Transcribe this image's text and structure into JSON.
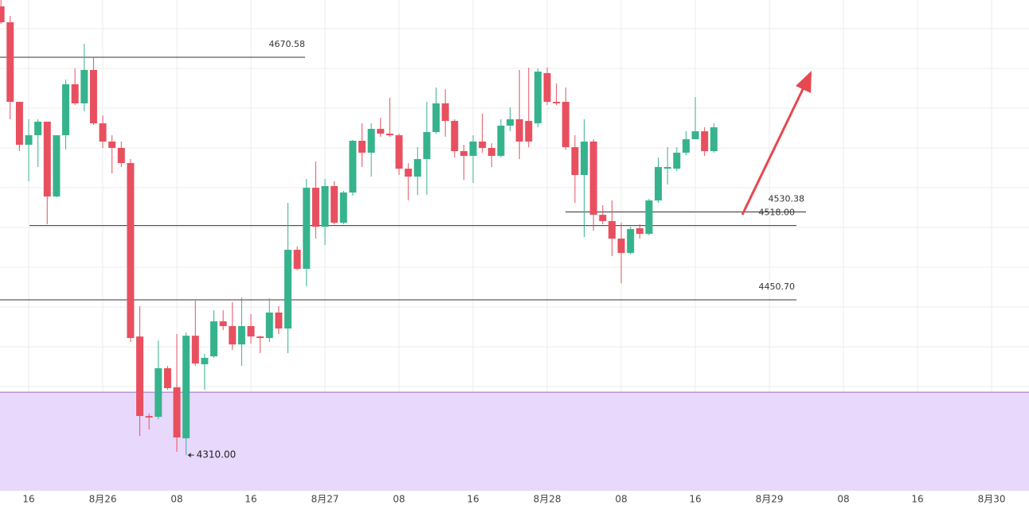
{
  "chart_data": {
    "type": "candlestick",
    "up_color": "#36b38d",
    "down_color": "#e8505f",
    "xlim": [
      -3.1,
      108.04
    ],
    "ylim": [
      4277.7,
      4722.5
    ],
    "xticks": [
      {
        "value": 0,
        "label": "16"
      },
      {
        "value": 8,
        "label": "8月26"
      },
      {
        "value": 16,
        "label": "08"
      },
      {
        "value": 24,
        "label": "16"
      },
      {
        "value": 32,
        "label": "8月27"
      },
      {
        "value": 40,
        "label": "08"
      },
      {
        "value": 48,
        "label": "16"
      },
      {
        "value": 56,
        "label": "8月28"
      },
      {
        "value": 64,
        "label": "08"
      },
      {
        "value": 72,
        "label": "16"
      },
      {
        "value": 80,
        "label": "8月29"
      },
      {
        "value": 88,
        "label": "08"
      },
      {
        "value": 96,
        "label": "16"
      },
      {
        "value": 104,
        "label": "8月30"
      }
    ],
    "x": [
      -3,
      -2,
      -1,
      0,
      1,
      2,
      3,
      4,
      5,
      6,
      7,
      8,
      9,
      10,
      11,
      12,
      13,
      14,
      15,
      16,
      17,
      18,
      19,
      20,
      21,
      22,
      23,
      24,
      25,
      26,
      27,
      28,
      29,
      30,
      31,
      32,
      33,
      34,
      35,
      36,
      37,
      38,
      39,
      40,
      41,
      42,
      43,
      44,
      45,
      46,
      47,
      48,
      49,
      50,
      51,
      52,
      53,
      54,
      55,
      56,
      57,
      58,
      59,
      60,
      61,
      62,
      63,
      64,
      65,
      66,
      67,
      68,
      69,
      70,
      71,
      72,
      73,
      74
    ],
    "open": [
      4716.7,
      4702.3,
      4630.2,
      4591.3,
      4599.9,
      4612.2,
      4544.4,
      4599.9,
      4646.1,
      4628.8,
      4659.1,
      4610.7,
      4594.2,
      4588.4,
      4574.7,
      4417.5,
      4345.4,
      4344.7,
      4388.7,
      4371.4,
      4325.2,
      4418.2,
      4392.3,
      4399.5,
      4431.2,
      4426.9,
      4410.3,
      4426.9,
      4417.5,
      4416.1,
      4439.2,
      4424.7,
      4496.1,
      4478.8,
      4552.3,
      4517.0,
      4553.8,
      4520.6,
      4548.0,
      4594.9,
      4584.1,
      4605.7,
      4601.4,
      4599.9,
      4569.6,
      4562.4,
      4578.3,
      4602.8,
      4628.8,
      4612.9,
      4585.5,
      4581.2,
      4594.2,
      4588.4,
      4581.2,
      4608.6,
      4614.4,
      4612.9,
      4610.7,
      4656.2,
      4630.2,
      4630.2,
      4589.1,
      4563.9,
      4594.2,
      4527.8,
      4522.1,
      4506.2,
      4493.2,
      4515.6,
      4510.5,
      4540.8,
      4569.6,
      4569.6,
      4584.1,
      4596.3,
      4603.5,
      4585.5
    ],
    "high": [
      4722.5,
      4708.1,
      4630.2,
      4614.4,
      4614.4,
      4612.2,
      4599.9,
      4650.4,
      4660.5,
      4682.8,
      4670.6,
      4618.0,
      4599.9,
      4594.2,
      4578.3,
      4444.9,
      4347.6,
      4413.9,
      4390.8,
      4419.7,
      4421.1,
      4450.0,
      4401.7,
      4441.3,
      4441.3,
      4448.5,
      4452.8,
      4437.7,
      4418.2,
      4452.1,
      4444.9,
      4538.6,
      4499.0,
      4560.3,
      4576.1,
      4560.3,
      4558.1,
      4549.5,
      4595.6,
      4610.7,
      4610.7,
      4615.8,
      4633.8,
      4601.4,
      4574.7,
      4589.1,
      4630.2,
      4643.2,
      4641.7,
      4614.4,
      4591.3,
      4599.9,
      4619.4,
      4592.7,
      4614.4,
      4625.2,
      4659.1,
      4661.2,
      4660.5,
      4661.2,
      4646.8,
      4643.2,
      4599.9,
      4614.4,
      4596.3,
      4536.5,
      4540.8,
      4520.6,
      4517.0,
      4519.2,
      4542.3,
      4579.7,
      4589.1,
      4589.1,
      4603.5,
      4634.5,
      4607.1,
      4610.7
    ],
    "low": [
      4700.9,
      4614.4,
      4585.5,
      4558.1,
      4571.1,
      4519.2,
      4543.7,
      4587.0,
      4627.3,
      4621.6,
      4609.3,
      4588.4,
      4565.3,
      4571.1,
      4412.5,
      4327.4,
      4333.2,
      4342.5,
      4369.2,
      4313.0,
      4310.0,
      4390.8,
      4369.2,
      4398.1,
      4423.3,
      4405.3,
      4390.8,
      4411.0,
      4402.4,
      4412.5,
      4419.7,
      4402.4,
      4477.4,
      4462.9,
      4506.2,
      4500.4,
      4519.2,
      4519.2,
      4545.1,
      4571.1,
      4562.4,
      4598.5,
      4598.5,
      4563.9,
      4540.8,
      4545.9,
      4545.9,
      4601.4,
      4598.5,
      4579.7,
      4559.5,
      4556.7,
      4584.1,
      4571.1,
      4579.7,
      4603.5,
      4578.3,
      4589.1,
      4607.1,
      4627.3,
      4627.3,
      4587.0,
      4538.6,
      4507.6,
      4513.4,
      4519.2,
      4490.3,
      4465.8,
      4491.8,
      4506.2,
      4509.1,
      4538.6,
      4555.2,
      4567.5,
      4581.9,
      4596.3,
      4581.2,
      4584.1
    ],
    "close": [
      4702.3,
      4630.2,
      4591.3,
      4599.9,
      4612.2,
      4544.4,
      4599.9,
      4646.1,
      4628.8,
      4659.1,
      4610.7,
      4594.2,
      4588.4,
      4574.7,
      4416.1,
      4345.4,
      4344.0,
      4388.7,
      4370.7,
      4326.0,
      4418.2,
      4393.0,
      4398.1,
      4431.2,
      4426.9,
      4410.3,
      4426.9,
      4417.5,
      4416.1,
      4439.2,
      4424.7,
      4496.1,
      4478.8,
      4552.3,
      4517.0,
      4553.8,
      4520.6,
      4548.0,
      4594.9,
      4584.1,
      4605.7,
      4601.4,
      4599.9,
      4569.6,
      4562.4,
      4578.3,
      4602.8,
      4628.8,
      4612.9,
      4585.5,
      4581.2,
      4594.2,
      4588.4,
      4581.2,
      4608.6,
      4614.4,
      4594.2,
      4594.2,
      4657.6,
      4630.2,
      4628.8,
      4589.1,
      4563.9,
      4594.2,
      4527.8,
      4522.1,
      4506.2,
      4493.2,
      4514.9,
      4510.5,
      4540.8,
      4571.1,
      4571.1,
      4584.1,
      4596.3,
      4603.5,
      4585.5,
      4607.1
    ],
    "levels": [
      {
        "value": 4670.58,
        "label": "4670.58"
      },
      {
        "value": 4530.38,
        "label": "4530.38"
      },
      {
        "value": 4518.0,
        "label": "4518.00"
      },
      {
        "value": 4450.7,
        "label": "4450.70"
      }
    ],
    "low_marker": {
      "value": 4310.0,
      "label": "4310.00"
    },
    "zone": {
      "from": 4367.0
    }
  }
}
